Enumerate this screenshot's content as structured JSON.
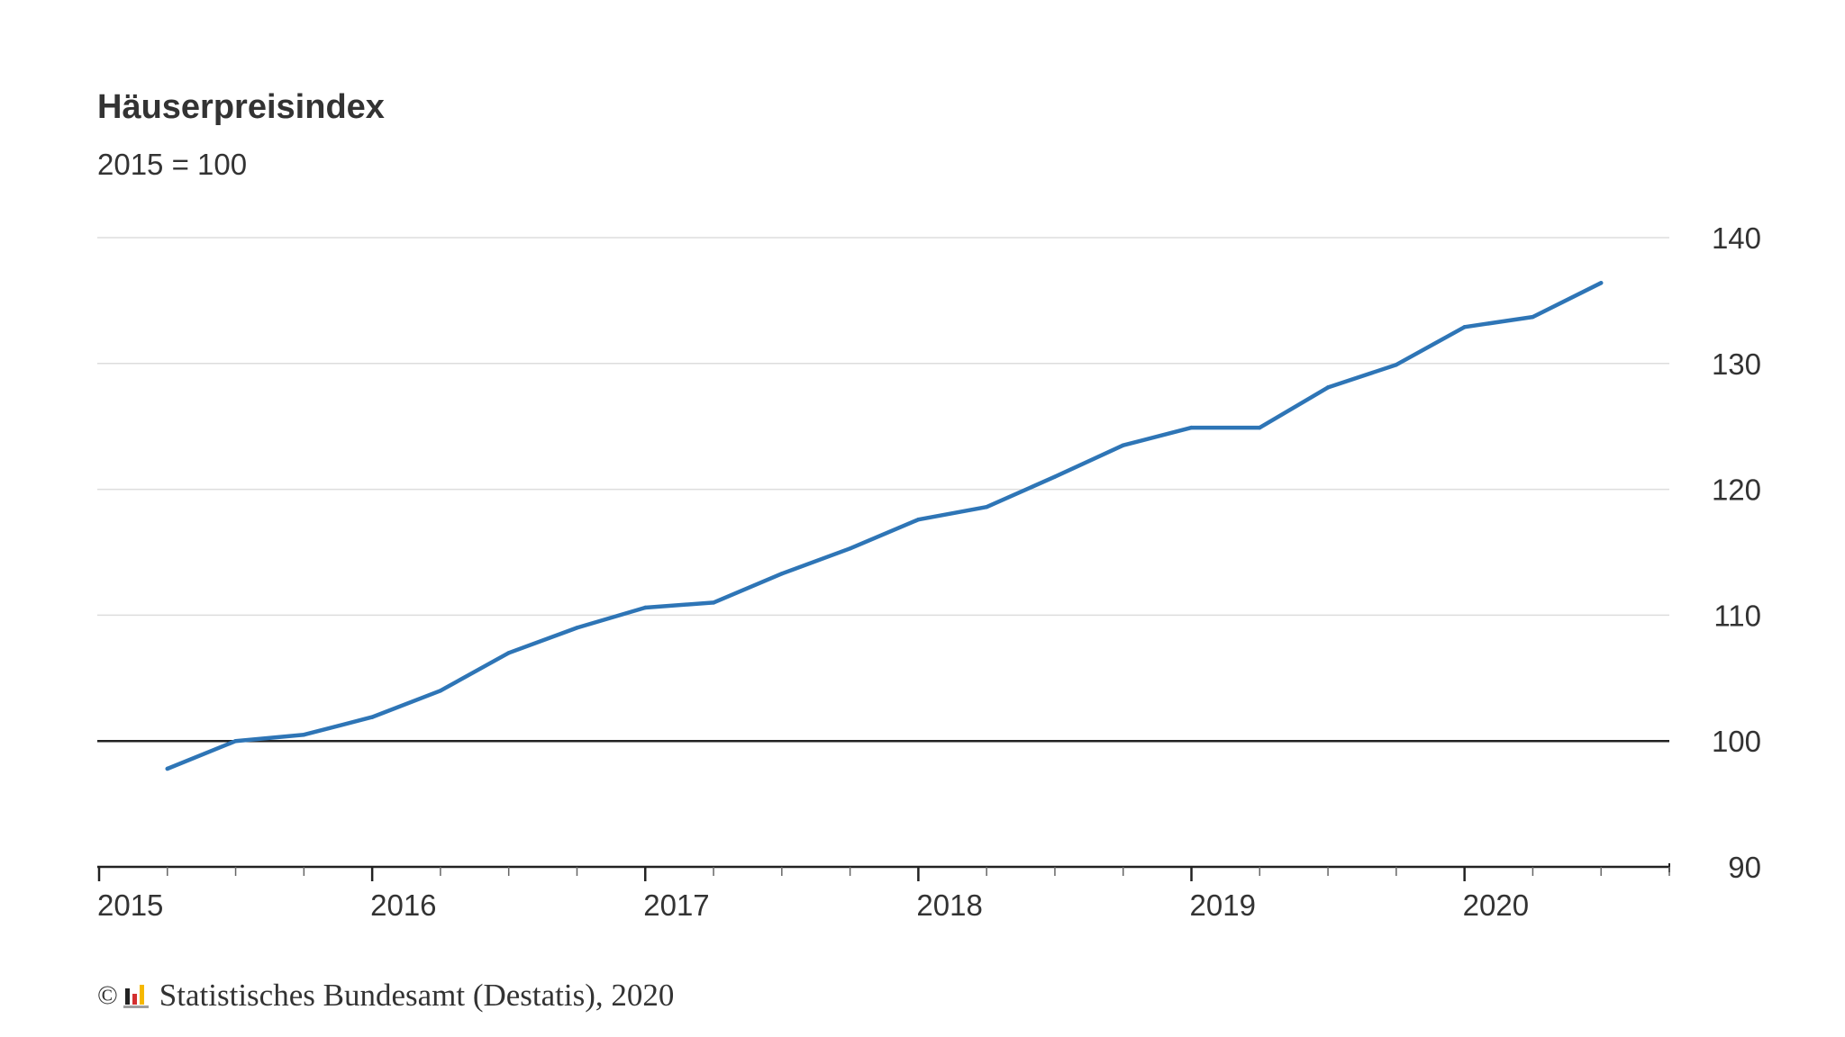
{
  "title": "Häuserpreisindex",
  "subtitle": "2015 = 100",
  "source": "Statistisches Bundesamt (Destatis), 2020",
  "copyright_symbol": "©",
  "colors": {
    "line": "#2e75b6",
    "baseline": "#222222",
    "grid": "#dddddd",
    "text": "#333333"
  },
  "chart_data": {
    "type": "line",
    "title": "Häuserpreisindex",
    "subtitle": "2015 = 100",
    "xlabel": "",
    "ylabel": "",
    "x_tick_labels": [
      "2015",
      "2016",
      "2017",
      "2018",
      "2019",
      "2020"
    ],
    "y_tick_labels": [
      "140",
      "130",
      "120",
      "110",
      "100",
      "90"
    ],
    "ylim": [
      90,
      140
    ],
    "y_ticks": [
      90,
      100,
      110,
      120,
      130,
      140
    ],
    "y_axis_position": "right",
    "grid": true,
    "reference_line": 100,
    "series": [
      {
        "categories": [
          "2015 Q1",
          "2015 Q2",
          "2015 Q3",
          "2015 Q4",
          "2016 Q1",
          "2016 Q2",
          "2016 Q3",
          "2016 Q4",
          "2017 Q1",
          "2017 Q2",
          "2017 Q3",
          "2017 Q4",
          "2018 Q1",
          "2018 Q2",
          "2018 Q3",
          "2018 Q4",
          "2019 Q1",
          "2019 Q2",
          "2019 Q3",
          "2019 Q4",
          "2020 Q1",
          "2020 Q2"
        ],
        "values": [
          97.8,
          100.0,
          100.5,
          101.9,
          104.0,
          107.0,
          109.0,
          110.6,
          111.0,
          113.3,
          115.3,
          117.6,
          118.6,
          121.0,
          123.5,
          124.9,
          124.9,
          128.1,
          129.9,
          132.9,
          133.7,
          136.4
        ]
      }
    ]
  }
}
